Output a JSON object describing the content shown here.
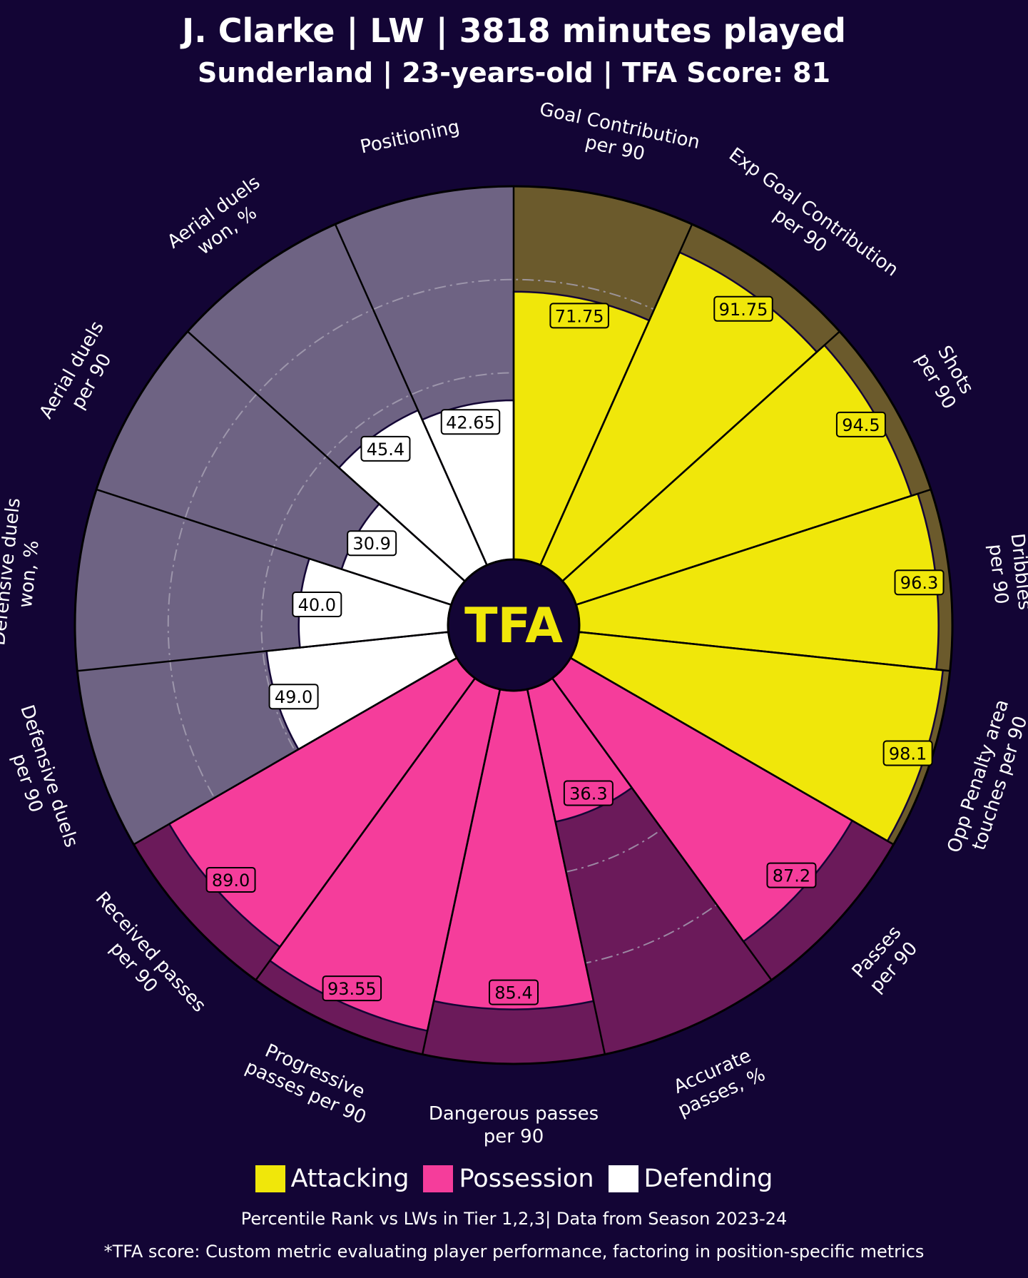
{
  "header": {
    "title": "J. Clarke | LW | 3818 minutes played",
    "subtitle": "Sunderland | 23-years-old | TFA Score: 81"
  },
  "logo_text": "TFA",
  "colors": {
    "background": "#130535",
    "attacking": "#f0e70a",
    "attacking_bg": "#6b5a2c",
    "possession": "#f53d9b",
    "possession_bg": "#6b1a5a",
    "defending": "#ffffff",
    "defending_bg": "#6e6383"
  },
  "legend": [
    {
      "label": "Attacking",
      "color": "#f0e70a"
    },
    {
      "label": "Possession",
      "color": "#f53d9b"
    },
    {
      "label": "Defending",
      "color": "#ffffff"
    }
  ],
  "footer": {
    "line1": "Percentile Rank vs LWs in Tier 1,2,3| Data from Season 2023-24",
    "line2": "*TFA score: Custom metric evaluating player performance, factoring in position-specific metrics"
  },
  "chart_data": {
    "type": "pizza",
    "value_range": [
      0,
      100
    ],
    "reference_rings": [
      25,
      50,
      75
    ],
    "metrics": [
      {
        "label": "Goal Contribution\nper 90",
        "value": 71.75,
        "value_label": "71.75",
        "category": "attacking"
      },
      {
        "label": "Exp Goal Contribution\nper 90",
        "value": 91.75,
        "value_label": "91.75",
        "category": "attacking"
      },
      {
        "label": "Shots\nper 90",
        "value": 94.5,
        "value_label": "94.5",
        "category": "attacking"
      },
      {
        "label": "Dribbles\nper 90",
        "value": 96.3,
        "value_label": "96.3",
        "category": "attacking"
      },
      {
        "label": "Opp Penalty area\ntouches per 90",
        "value": 98.1,
        "value_label": "98.1",
        "category": "attacking"
      },
      {
        "label": "Passes\nper 90",
        "value": 87.2,
        "value_label": "87.2",
        "category": "possession"
      },
      {
        "label": "Accurate\npasses, %",
        "value": 36.3,
        "value_label": "36.3",
        "category": "possession"
      },
      {
        "label": "Dangerous passes\nper 90",
        "value": 85.4,
        "value_label": "85.4",
        "category": "possession"
      },
      {
        "label": "Progressive\npasses per 90",
        "value": 93.55,
        "value_label": "93.55",
        "category": "possession"
      },
      {
        "label": "Received passes\nper 90",
        "value": 89.0,
        "value_label": "89.0",
        "category": "possession"
      },
      {
        "label": "Defensive duels\nper 90",
        "value": 49.0,
        "value_label": "49.0",
        "category": "defending"
      },
      {
        "label": "Defensive duels\nwon, %",
        "value": 40.0,
        "value_label": "40.0",
        "category": "defending"
      },
      {
        "label": "Aerial duels\nper 90",
        "value": 30.9,
        "value_label": "30.9",
        "category": "defending"
      },
      {
        "label": "Aerial duels\nwon, %",
        "value": 45.4,
        "value_label": "45.4",
        "category": "defending"
      },
      {
        "label": "Positioning",
        "value": 42.65,
        "value_label": "42.65",
        "category": "defending"
      }
    ]
  }
}
